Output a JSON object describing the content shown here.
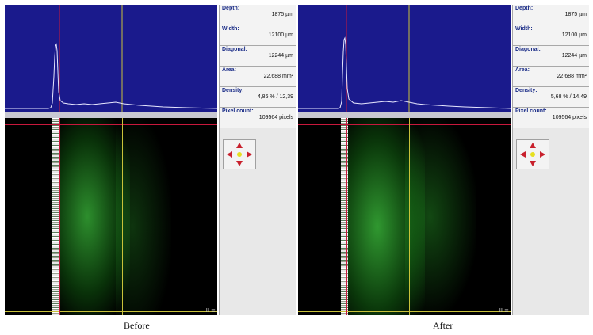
{
  "panels": [
    {
      "caption": "Before",
      "depth_label": "Depth:",
      "depth_value": "1875 µm",
      "width_label": "Width:",
      "width_value": "12100 µm",
      "diagonal_label": "Diagonal:",
      "diagonal_value": "12244 µm",
      "area_label": "Area:",
      "area_value": "22,688 mm²",
      "density_label": "Density:",
      "density_value": "4,86 %  /  12,39",
      "pixel_label": "Pixel count:",
      "pixel_value": "109564 pixels",
      "corner_text": "II ≡"
    },
    {
      "caption": "After",
      "depth_label": "Depth:",
      "depth_value": "1875 µm",
      "width_label": "Width:",
      "width_value": "12100 µm",
      "diagonal_label": "Diagonal:",
      "diagonal_value": "12244 µm",
      "area_label": "Area:",
      "area_value": "22,688 mm²",
      "density_label": "Density:",
      "density_value": "5,68 %  /  14,49",
      "pixel_label": "Pixel count:",
      "pixel_value": "109564 pixels",
      "corner_text": "II ≡"
    }
  ],
  "colors": {
    "plot_bg": "#1a1a8c",
    "cursor_red": "#c8183c",
    "cursor_yellow": "#c9c23a",
    "scan_green": "#2fbf2f",
    "label_blue": "#1c2e88"
  },
  "icons": [
    "navigation-arrows-icon"
  ]
}
